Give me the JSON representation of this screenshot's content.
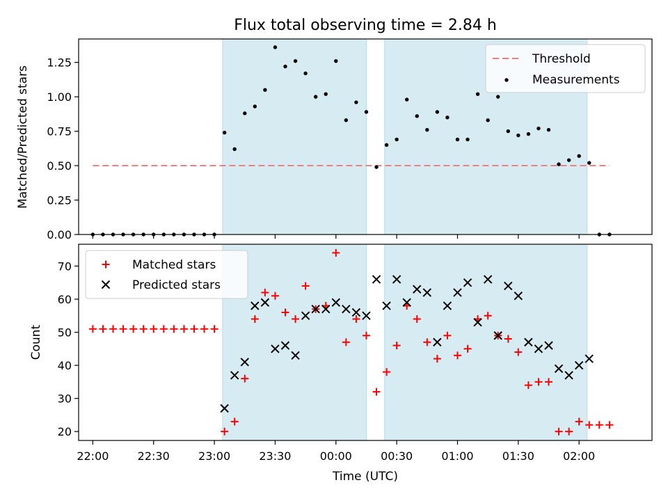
{
  "chart_data": [
    {
      "type": "scatter",
      "title": "Flux total observing time = 2.84 h",
      "xlabel": "",
      "ylabel": "Matched/Predicted stars",
      "ylim": [
        0,
        1.42
      ],
      "xlim": [
        "21:53",
        "02:36"
      ],
      "yticks": [
        "0.00",
        "0.25",
        "0.50",
        "0.75",
        "1.00",
        "1.25"
      ],
      "shaded_intervals": [
        [
          "23:04",
          "00:15"
        ],
        [
          "00:24",
          "02:04"
        ]
      ],
      "legend_position": "top-right",
      "threshold": {
        "name": "Threshold",
        "value": 0.5,
        "x_range": [
          "22:00",
          "02:15"
        ],
        "color": "#f08080"
      },
      "series": [
        {
          "name": "Measurements",
          "color": "#000000",
          "points": [
            [
              "22:00",
              0.0
            ],
            [
              "22:05",
              0.0
            ],
            [
              "22:10",
              0.0
            ],
            [
              "22:15",
              0.0
            ],
            [
              "22:20",
              0.0
            ],
            [
              "22:25",
              0.0
            ],
            [
              "22:30",
              0.0
            ],
            [
              "22:35",
              0.0
            ],
            [
              "22:40",
              0.0
            ],
            [
              "22:45",
              0.0
            ],
            [
              "22:50",
              0.0
            ],
            [
              "22:55",
              0.0
            ],
            [
              "23:00",
              0.0
            ],
            [
              "23:05",
              0.74
            ],
            [
              "23:10",
              0.62
            ],
            [
              "23:15",
              0.88
            ],
            [
              "23:20",
              0.93
            ],
            [
              "23:25",
              1.05
            ],
            [
              "23:30",
              1.36
            ],
            [
              "23:35",
              1.22
            ],
            [
              "23:40",
              1.26
            ],
            [
              "23:45",
              1.17
            ],
            [
              "23:50",
              1.0
            ],
            [
              "23:55",
              1.02
            ],
            [
              "00:00",
              1.26
            ],
            [
              "00:05",
              0.83
            ],
            [
              "00:10",
              0.96
            ],
            [
              "00:15",
              0.89
            ],
            [
              "00:20",
              0.49
            ],
            [
              "00:25",
              0.65
            ],
            [
              "00:30",
              0.69
            ],
            [
              "00:35",
              0.98
            ],
            [
              "00:40",
              0.86
            ],
            [
              "00:45",
              0.76
            ],
            [
              "00:50",
              0.89
            ],
            [
              "00:55",
              0.85
            ],
            [
              "01:00",
              0.69
            ],
            [
              "01:05",
              0.69
            ],
            [
              "01:10",
              1.02
            ],
            [
              "01:15",
              0.83
            ],
            [
              "01:20",
              1.0
            ],
            [
              "01:25",
              0.75
            ],
            [
              "01:30",
              0.72
            ],
            [
              "01:35",
              0.73
            ],
            [
              "01:40",
              0.77
            ],
            [
              "01:45",
              0.76
            ],
            [
              "01:50",
              0.51
            ],
            [
              "01:55",
              0.54
            ],
            [
              "02:00",
              0.57
            ],
            [
              "02:05",
              0.52
            ],
            [
              "02:10",
              0.0
            ],
            [
              "02:15",
              0.0
            ]
          ]
        }
      ]
    },
    {
      "type": "scatter",
      "title": "",
      "xlabel": "Time (UTC)",
      "ylabel": "Count",
      "ylim": [
        17.3,
        76.6
      ],
      "xlim": [
        "21:53",
        "02:36"
      ],
      "yticks": [
        "20",
        "30",
        "40",
        "50",
        "60",
        "70"
      ],
      "xticks": [
        "22:00",
        "22:30",
        "23:00",
        "23:30",
        "00:00",
        "00:30",
        "01:00",
        "01:30",
        "02:00"
      ],
      "shaded_intervals": [
        [
          "23:04",
          "00:15"
        ],
        [
          "00:24",
          "02:04"
        ]
      ],
      "legend_position": "top-left",
      "series": [
        {
          "name": "Matched stars",
          "marker": "plus",
          "color": "#ff0000",
          "points": [
            [
              "22:00",
              51
            ],
            [
              "22:05",
              51
            ],
            [
              "22:10",
              51
            ],
            [
              "22:15",
              51
            ],
            [
              "22:20",
              51
            ],
            [
              "22:25",
              51
            ],
            [
              "22:30",
              51
            ],
            [
              "22:35",
              51
            ],
            [
              "22:40",
              51
            ],
            [
              "22:45",
              51
            ],
            [
              "22:50",
              51
            ],
            [
              "22:55",
              51
            ],
            [
              "23:00",
              51
            ],
            [
              "23:05",
              20
            ],
            [
              "23:10",
              23
            ],
            [
              "23:15",
              36
            ],
            [
              "23:20",
              54
            ],
            [
              "23:25",
              62
            ],
            [
              "23:30",
              61
            ],
            [
              "23:35",
              56
            ],
            [
              "23:40",
              54
            ],
            [
              "23:45",
              64
            ],
            [
              "23:50",
              57
            ],
            [
              "23:55",
              58
            ],
            [
              "00:00",
              74
            ],
            [
              "00:05",
              47
            ],
            [
              "00:10",
              54
            ],
            [
              "00:15",
              49
            ],
            [
              "00:20",
              32
            ],
            [
              "00:25",
              38
            ],
            [
              "00:30",
              46
            ],
            [
              "00:35",
              58
            ],
            [
              "00:40",
              54
            ],
            [
              "00:45",
              47
            ],
            [
              "00:50",
              42
            ],
            [
              "00:55",
              49
            ],
            [
              "01:00",
              43
            ],
            [
              "01:05",
              45
            ],
            [
              "01:10",
              54
            ],
            [
              "01:15",
              55
            ],
            [
              "01:20",
              49
            ],
            [
              "01:25",
              48
            ],
            [
              "01:30",
              44
            ],
            [
              "01:35",
              34
            ],
            [
              "01:40",
              35
            ],
            [
              "01:45",
              35
            ],
            [
              "01:50",
              20
            ],
            [
              "01:55",
              20
            ],
            [
              "02:00",
              23
            ],
            [
              "02:05",
              22
            ],
            [
              "02:10",
              22
            ],
            [
              "02:15",
              22
            ]
          ]
        },
        {
          "name": "Predicted stars",
          "marker": "x",
          "color": "#000000",
          "points": [
            [
              "23:05",
              27
            ],
            [
              "23:10",
              37
            ],
            [
              "23:15",
              41
            ],
            [
              "23:20",
              58
            ],
            [
              "23:25",
              59
            ],
            [
              "23:30",
              45
            ],
            [
              "23:35",
              46
            ],
            [
              "23:40",
              43
            ],
            [
              "23:45",
              55
            ],
            [
              "23:50",
              57
            ],
            [
              "23:55",
              57
            ],
            [
              "00:00",
              59
            ],
            [
              "00:05",
              57
            ],
            [
              "00:10",
              56
            ],
            [
              "00:15",
              55
            ],
            [
              "00:20",
              66
            ],
            [
              "00:25",
              58
            ],
            [
              "00:30",
              66
            ],
            [
              "00:35",
              59
            ],
            [
              "00:40",
              63
            ],
            [
              "00:45",
              62
            ],
            [
              "00:50",
              47
            ],
            [
              "00:55",
              58
            ],
            [
              "01:00",
              62
            ],
            [
              "01:05",
              65
            ],
            [
              "01:10",
              53
            ],
            [
              "01:15",
              66
            ],
            [
              "01:20",
              49
            ],
            [
              "01:25",
              64
            ],
            [
              "01:30",
              61
            ],
            [
              "01:35",
              47
            ],
            [
              "01:40",
              45
            ],
            [
              "01:45",
              46
            ],
            [
              "01:50",
              39
            ],
            [
              "01:55",
              37
            ],
            [
              "02:00",
              40
            ],
            [
              "02:05",
              42
            ]
          ]
        }
      ]
    }
  ],
  "colors": {
    "shade": "#add8e6",
    "threshold": "#f08080",
    "matched": "#ff0000",
    "predicted": "#000000"
  }
}
